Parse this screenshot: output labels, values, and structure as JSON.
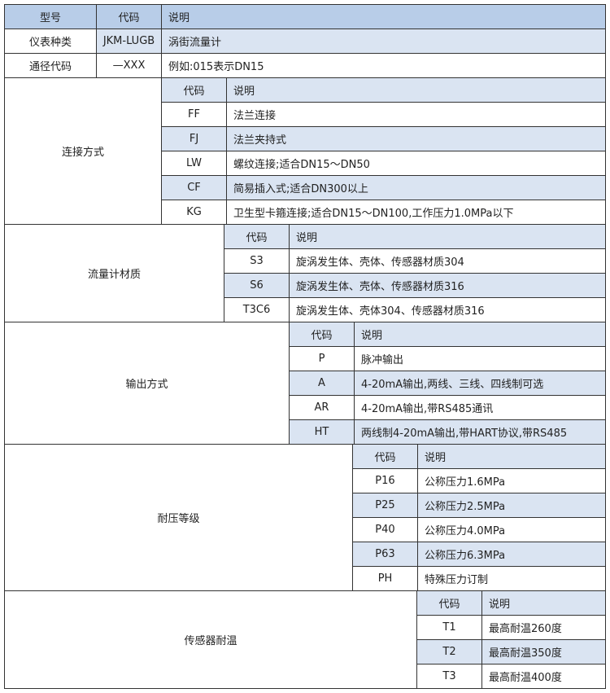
{
  "header": {
    "model": "型号",
    "code": "代码",
    "desc": "说明"
  },
  "top_rows": [
    {
      "label": "仪表种类",
      "code": "JKM-LUGB",
      "desc": "涡街流量计"
    },
    {
      "label": "通径代码",
      "code": "—XXX",
      "desc": "例如:015表示DN15"
    }
  ],
  "sub_header": {
    "code": "代码",
    "desc": "说明"
  },
  "sections": [
    {
      "label": "连接方式",
      "rows": [
        {
          "code": "FF",
          "desc": "法兰连接"
        },
        {
          "code": "FJ",
          "desc": "法兰夹持式"
        },
        {
          "code": "LW",
          "desc": "螺纹连接;适合DN15～DN50"
        },
        {
          "code": "CF",
          "desc": "简易插入式;适合DN300以上"
        },
        {
          "code": "KG",
          "desc": "卫生型卡箍连接;适合DN15～DN100,工作压力1.0MPa以下"
        }
      ]
    },
    {
      "label": "流量计材质",
      "rows": [
        {
          "code": "S3",
          "desc": "旋涡发生体、壳体、传感器材质304"
        },
        {
          "code": "S6",
          "desc": "旋涡发生体、壳体、传感器材质316"
        },
        {
          "code": "T3C6",
          "desc": "旋涡发生体、壳体304、传感器材质316"
        }
      ]
    },
    {
      "label": "输出方式",
      "rows": [
        {
          "code": "P",
          "desc": "脉冲输出"
        },
        {
          "code": "A",
          "desc": "4-20mA输出,两线、三线、四线制可选"
        },
        {
          "code": "AR",
          "desc": "4-20mA输出,带RS485通讯"
        },
        {
          "code": "HT",
          "desc": "两线制4-20mA输出,带HART协议,带RS485"
        }
      ]
    },
    {
      "label": "耐压等级",
      "rows": [
        {
          "code": "P16",
          "desc": "公称压力1.6MPa"
        },
        {
          "code": "P25",
          "desc": "公称压力2.5MPa"
        },
        {
          "code": "P40",
          "desc": "公称压力4.0MPa"
        },
        {
          "code": "P63",
          "desc": "公称压力6.3MPa"
        },
        {
          "code": "PH",
          "desc": "特殊压力订制"
        }
      ]
    },
    {
      "label": "传感器耐温",
      "rows": [
        {
          "code": "T1",
          "desc": "最高耐温260度"
        },
        {
          "code": "T2",
          "desc": "最高耐温350度"
        },
        {
          "code": "T3",
          "desc": "最高耐温400度"
        }
      ]
    }
  ],
  "colors": {
    "header": "#b8cde8",
    "alt_row": "#dae4f2",
    "border": "#333333"
  }
}
